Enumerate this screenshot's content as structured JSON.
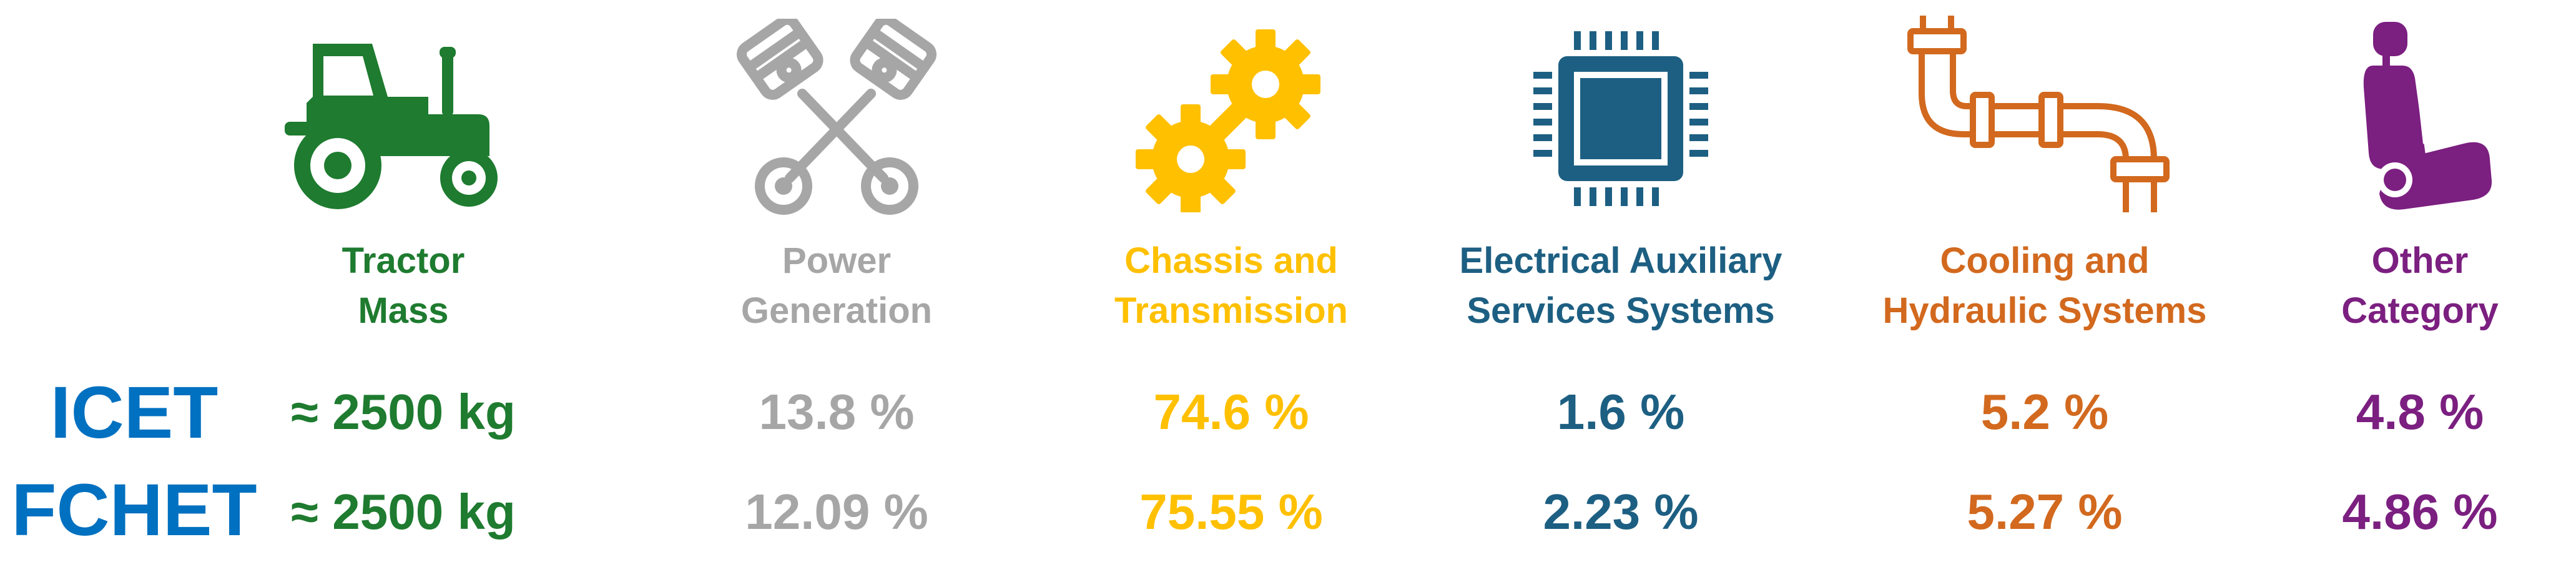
{
  "rows": [
    {
      "label": "ICET",
      "color": "#0070C0"
    },
    {
      "label": "FCHET",
      "color": "#0070C0"
    }
  ],
  "categories": [
    {
      "line1": "Tractor",
      "line2": "Mass",
      "icon": "tractor-icon",
      "color": "#1E7B2F",
      "icet": "≈ 2500 kg",
      "fchet": "≈ 2500 kg"
    },
    {
      "line1": "Power",
      "line2": "Generation",
      "icon": "engine-pistons-icon",
      "color": "#A6A6A6",
      "icet": "13.8 %",
      "fchet": "12.09 %"
    },
    {
      "line1": "Chassis and",
      "line2": "Transmission",
      "icon": "gears-icon",
      "color": "#FFC000",
      "icet": "74.6 %",
      "fchet": "75.55 %"
    },
    {
      "line1": "Electrical Auxiliary",
      "line2": "Services Systems",
      "icon": "microchip-icon",
      "color": "#1D5F82",
      "icet": "1.6 %",
      "fchet": "2.23 %"
    },
    {
      "line1": "Cooling and",
      "line2": "Hydraulic Systems",
      "icon": "pipe-icon",
      "color": "#D2691E",
      "icet": "5.2 %",
      "fchet": "5.27 %"
    },
    {
      "line1": "Other",
      "line2": "Category",
      "icon": "car-seat-icon",
      "color": "#7B1F80",
      "icet": "4.8 %",
      "fchet": "4.86 %"
    }
  ]
}
